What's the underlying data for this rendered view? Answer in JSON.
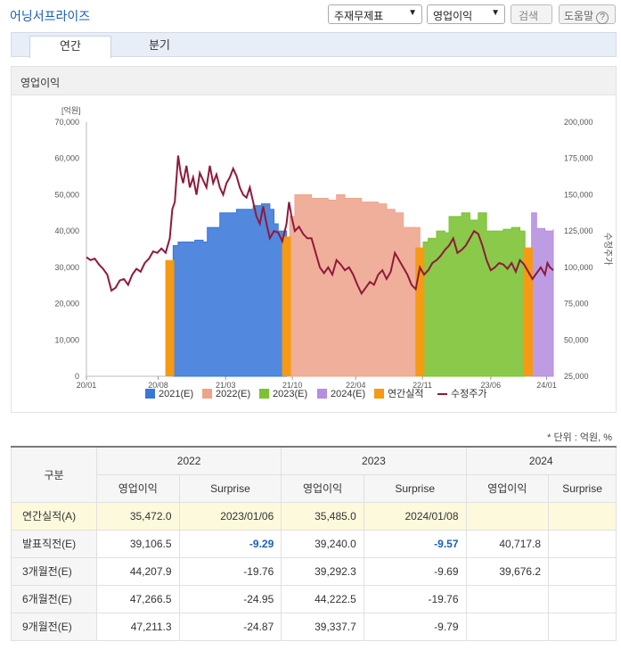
{
  "header": {
    "title": "어닝서프라이즈",
    "select_type": "주재무제표",
    "select_item": "영업이익",
    "search_label": "검색",
    "help_label": "도움말",
    "help_icon_text": "?"
  },
  "tabs": [
    {
      "label": "연간"
    },
    {
      "label": "분기"
    }
  ],
  "chart_panel": {
    "title": "영업이익"
  },
  "chart_data": {
    "type": "area",
    "y_left": {
      "label": "[억원]",
      "range": [
        0,
        70000
      ],
      "ticks": [
        "0",
        "10,000",
        "20,000",
        "30,000",
        "40,000",
        "50,000",
        "60,000",
        "70,000"
      ]
    },
    "y_right": {
      "label": "수정주가",
      "range": [
        25000,
        200000
      ],
      "ticks": [
        "25,000",
        "50,000",
        "75,000",
        "100,000",
        "125,000",
        "150,000",
        "175,000",
        "200,000"
      ]
    },
    "x_ticks": [
      "20/01",
      "20/08",
      "21/03",
      "21/10",
      "22/04",
      "22/11",
      "23/06",
      "24/01"
    ],
    "x_range": [
      0,
      56
    ],
    "legend": [
      "2021(E)",
      "2022(E)",
      "2023(E)",
      "2024(E)",
      "연간실적",
      "수정주가"
    ],
    "colors": {
      "2021": "#3a78d8",
      "2022": "#eea48c",
      "2023": "#7ac230",
      "2024": "#b48ee0",
      "actual": "#f59a12",
      "price": "#8e1a3c"
    },
    "series": [
      {
        "name": "2021(E)",
        "points": [
          [
            10.4,
            36000
          ],
          [
            11,
            37000
          ],
          [
            13,
            37500
          ],
          [
            14,
            37000
          ],
          [
            14.5,
            41000
          ],
          [
            16,
            45000
          ],
          [
            18,
            46000
          ],
          [
            20,
            47000
          ],
          [
            21,
            47500
          ],
          [
            22,
            46000
          ],
          [
            22.5,
            42000
          ],
          [
            23,
            40000
          ],
          [
            24,
            40000
          ]
        ]
      },
      {
        "name": "2022(E)",
        "points": [
          [
            24.4,
            44000
          ],
          [
            25,
            50000
          ],
          [
            27,
            49000
          ],
          [
            29,
            48500
          ],
          [
            30,
            50000
          ],
          [
            31,
            49000
          ],
          [
            33,
            48000
          ],
          [
            35,
            47500
          ],
          [
            36,
            46000
          ],
          [
            37,
            45000
          ],
          [
            38,
            41000
          ],
          [
            40,
            40000
          ]
        ]
      },
      {
        "name": "2023(E)",
        "points": [
          [
            40.4,
            37000
          ],
          [
            41,
            38000
          ],
          [
            42,
            40000
          ],
          [
            43,
            39500
          ],
          [
            43.5,
            44000
          ],
          [
            45,
            45000
          ],
          [
            46,
            43000
          ],
          [
            47,
            45000
          ],
          [
            48,
            40000
          ],
          [
            50,
            40500
          ],
          [
            51,
            41000
          ],
          [
            52,
            40000
          ],
          [
            52.6,
            40000
          ]
        ]
      },
      {
        "name": "2024(E)",
        "points": [
          [
            53.4,
            45000
          ],
          [
            54,
            40717.8
          ],
          [
            55,
            40000
          ],
          [
            56,
            40500
          ]
        ]
      }
    ],
    "actual_bars": [
      {
        "x": 10.0,
        "value": 32000
      },
      {
        "x": 24.0,
        "value": 38500
      },
      {
        "x": 40.0,
        "value": 35472.0
      },
      {
        "x": 53.0,
        "value": 35485.0
      }
    ],
    "price": [
      [
        0,
        107000
      ],
      [
        0.5,
        105000
      ],
      [
        1,
        106000
      ],
      [
        1.5,
        102000
      ],
      [
        2,
        99000
      ],
      [
        2.5,
        95000
      ],
      [
        3,
        84000
      ],
      [
        3.5,
        86000
      ],
      [
        4,
        91000
      ],
      [
        4.5,
        92000
      ],
      [
        5,
        88000
      ],
      [
        5.5,
        95000
      ],
      [
        6,
        99000
      ],
      [
        6.5,
        97000
      ],
      [
        7,
        103000
      ],
      [
        7.5,
        106000
      ],
      [
        8,
        111000
      ],
      [
        8.5,
        110000
      ],
      [
        9,
        113000
      ],
      [
        9.5,
        110000
      ],
      [
        10,
        120000
      ],
      [
        10.3,
        140000
      ],
      [
        10.6,
        145000
      ],
      [
        11,
        177000
      ],
      [
        11.3,
        165000
      ],
      [
        11.6,
        158000
      ],
      [
        12,
        170000
      ],
      [
        12.4,
        155000
      ],
      [
        12.8,
        162000
      ],
      [
        13.2,
        150000
      ],
      [
        13.6,
        165000
      ],
      [
        14,
        160000
      ],
      [
        14.4,
        155000
      ],
      [
        14.8,
        170000
      ],
      [
        15.2,
        158000
      ],
      [
        15.6,
        164000
      ],
      [
        16,
        155000
      ],
      [
        16.4,
        150000
      ],
      [
        16.8,
        158000
      ],
      [
        17.2,
        162000
      ],
      [
        17.6,
        168000
      ],
      [
        18,
        163000
      ],
      [
        18.4,
        155000
      ],
      [
        18.8,
        150000
      ],
      [
        19.2,
        148000
      ],
      [
        19.6,
        155000
      ],
      [
        20,
        145000
      ],
      [
        20.4,
        135000
      ],
      [
        20.8,
        130000
      ],
      [
        21.2,
        142000
      ],
      [
        21.6,
        130000
      ],
      [
        22,
        120000
      ],
      [
        22.5,
        125000
      ],
      [
        23,
        124000
      ],
      [
        23.5,
        118000
      ],
      [
        24,
        130000
      ],
      [
        24.3,
        145000
      ],
      [
        24.6,
        135000
      ],
      [
        25,
        125000
      ],
      [
        25.5,
        128000
      ],
      [
        26,
        123000
      ],
      [
        26.5,
        120000
      ],
      [
        27,
        120000
      ],
      [
        27.5,
        110000
      ],
      [
        28,
        100000
      ],
      [
        28.5,
        96000
      ],
      [
        29,
        100000
      ],
      [
        29.5,
        95000
      ],
      [
        30,
        105000
      ],
      [
        30.5,
        102000
      ],
      [
        31,
        98000
      ],
      [
        31.5,
        100000
      ],
      [
        32,
        95000
      ],
      [
        32.5,
        88000
      ],
      [
        33,
        82000
      ],
      [
        33.5,
        86000
      ],
      [
        34,
        90000
      ],
      [
        34.5,
        88000
      ],
      [
        35,
        95000
      ],
      [
        35.5,
        98000
      ],
      [
        36,
        92000
      ],
      [
        36.5,
        97000
      ],
      [
        37,
        110000
      ],
      [
        37.5,
        105000
      ],
      [
        38,
        100000
      ],
      [
        38.5,
        95000
      ],
      [
        39,
        88000
      ],
      [
        39.5,
        85000
      ],
      [
        40,
        100000
      ],
      [
        40.5,
        95000
      ],
      [
        41,
        98000
      ],
      [
        41.5,
        103000
      ],
      [
        42,
        105000
      ],
      [
        42.5,
        108000
      ],
      [
        43,
        112000
      ],
      [
        43.5,
        115000
      ],
      [
        44,
        120000
      ],
      [
        44.5,
        110000
      ],
      [
        45,
        112000
      ],
      [
        45.5,
        115000
      ],
      [
        46,
        120000
      ],
      [
        46.5,
        125000
      ],
      [
        47,
        123000
      ],
      [
        47.5,
        115000
      ],
      [
        48,
        105000
      ],
      [
        48.5,
        98000
      ],
      [
        49,
        100000
      ],
      [
        49.5,
        103000
      ],
      [
        50,
        102000
      ],
      [
        50.5,
        99000
      ],
      [
        51,
        103000
      ],
      [
        51.5,
        97000
      ],
      [
        52,
        105000
      ],
      [
        52.5,
        102000
      ],
      [
        53,
        97000
      ],
      [
        53.5,
        92000
      ],
      [
        54,
        96000
      ],
      [
        54.5,
        100000
      ],
      [
        55,
        95000
      ],
      [
        55.3,
        103000
      ],
      [
        55.6,
        100000
      ],
      [
        56,
        98000
      ]
    ]
  },
  "unit_note": "* 단위 : 억원, %",
  "table": {
    "header_group": "구분",
    "years": [
      "2022",
      "2023",
      "2024"
    ],
    "subheaders": [
      "영업이익",
      "Surprise"
    ],
    "rows": [
      {
        "label": "연간실적(A)",
        "cells": [
          "35,472.0",
          "2023/01/06",
          "35,485.0",
          "2024/01/08",
          "",
          ""
        ]
      },
      {
        "label": "발표직전(E)",
        "cells": [
          "39,106.5",
          "-9.29",
          "39,240.0",
          "-9.57",
          "40,717.8",
          ""
        ]
      },
      {
        "label": "3개월전(E)",
        "cells": [
          "44,207.9",
          "-19.76",
          "39,292.3",
          "-9.69",
          "39,676.2",
          ""
        ]
      },
      {
        "label": "6개월전(E)",
        "cells": [
          "47,266.5",
          "-24.95",
          "44,222.5",
          "-19.76",
          "",
          ""
        ]
      },
      {
        "label": "9개월전(E)",
        "cells": [
          "47,211.3",
          "-24.87",
          "39,337.7",
          "-9.79",
          "",
          ""
        ]
      }
    ]
  }
}
